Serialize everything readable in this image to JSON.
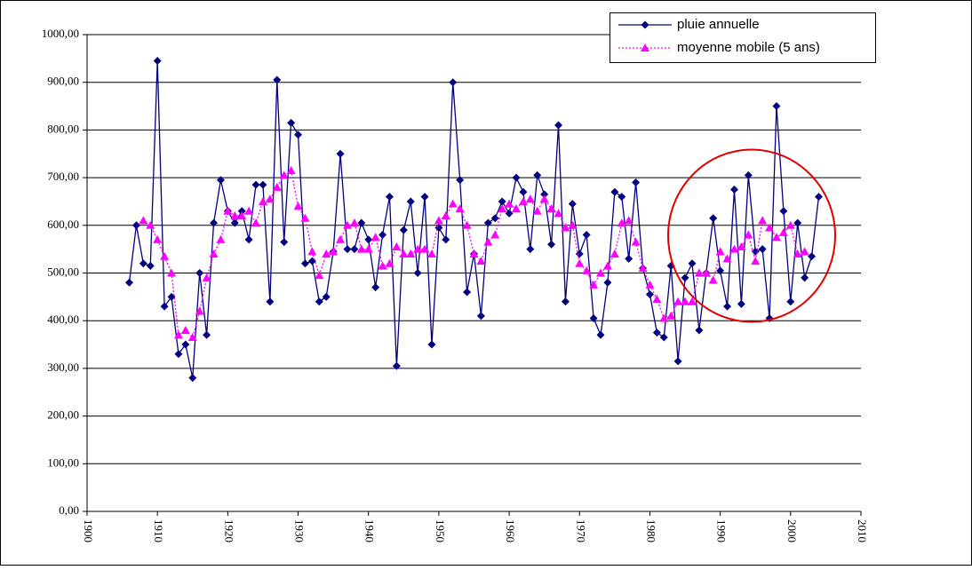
{
  "chart_data": {
    "type": "line",
    "x": [
      1906,
      1907,
      1908,
      1909,
      1910,
      1911,
      1912,
      1913,
      1914,
      1915,
      1916,
      1917,
      1918,
      1919,
      1920,
      1921,
      1922,
      1923,
      1924,
      1925,
      1926,
      1927,
      1928,
      1929,
      1930,
      1931,
      1932,
      1933,
      1934,
      1935,
      1936,
      1937,
      1938,
      1939,
      1940,
      1941,
      1942,
      1943,
      1944,
      1945,
      1946,
      1947,
      1948,
      1949,
      1950,
      1951,
      1952,
      1953,
      1954,
      1955,
      1956,
      1957,
      1958,
      1959,
      1960,
      1961,
      1962,
      1963,
      1964,
      1965,
      1966,
      1967,
      1968,
      1969,
      1970,
      1971,
      1972,
      1973,
      1974,
      1975,
      1976,
      1977,
      1978,
      1979,
      1980,
      1981,
      1982,
      1983,
      1984,
      1985,
      1986,
      1987,
      1988,
      1989,
      1990,
      1991,
      1992,
      1993,
      1994,
      1995,
      1996,
      1997,
      1998,
      1999,
      2000,
      2001,
      2002,
      2003,
      2004
    ],
    "series": [
      {
        "name": "pluie annuelle",
        "color": "#000080",
        "marker": "diamond",
        "dash": "solid",
        "values": [
          480,
          600,
          520,
          515,
          945,
          430,
          450,
          330,
          350,
          280,
          500,
          370,
          605,
          695,
          630,
          605,
          630,
          570,
          685,
          685,
          440,
          905,
          565,
          815,
          790,
          520,
          525,
          440,
          450,
          545,
          750,
          550,
          550,
          605,
          570,
          470,
          580,
          660,
          305,
          590,
          650,
          500,
          660,
          350,
          595,
          570,
          900,
          695,
          460,
          540,
          410,
          605,
          615,
          650,
          625,
          700,
          670,
          550,
          705,
          665,
          560,
          810,
          440,
          645,
          540,
          580,
          405,
          370,
          480,
          670,
          660,
          530,
          690,
          510,
          455,
          375,
          365,
          515,
          315,
          490,
          520,
          380,
          500,
          615,
          505,
          430,
          675,
          435,
          705,
          545,
          550,
          405,
          850,
          630,
          440,
          605,
          490,
          535,
          660
        ]
      },
      {
        "name": "moyenne mobile (5 ans)",
        "color": "#ff00ff",
        "marker": "triangle",
        "dash": "dotted",
        "values": [
          null,
          null,
          610,
          600,
          570,
          535,
          500,
          370,
          380,
          365,
          420,
          490,
          540,
          570,
          630,
          620,
          620,
          630,
          605,
          650,
          655,
          680,
          705,
          715,
          640,
          615,
          545,
          495,
          540,
          545,
          570,
          600,
          605,
          550,
          550,
          575,
          515,
          520,
          555,
          540,
          540,
          550,
          550,
          540,
          610,
          620,
          645,
          635,
          600,
          540,
          525,
          565,
          580,
          635,
          645,
          635,
          650,
          655,
          630,
          655,
          635,
          625,
          595,
          600,
          520,
          505,
          475,
          500,
          515,
          540,
          605,
          610,
          565,
          510,
          475,
          445,
          405,
          410,
          440,
          440,
          440,
          500,
          500,
          485,
          545,
          530,
          550,
          555,
          580,
          525,
          610,
          595,
          575,
          585,
          600,
          540,
          545,
          null,
          null
        ]
      }
    ],
    "xlim": [
      1900,
      2010
    ],
    "xticks": [
      1900,
      1910,
      1920,
      1930,
      1940,
      1950,
      1960,
      1970,
      1980,
      1990,
      2000,
      2010
    ],
    "ylim": [
      0,
      1000
    ],
    "yticks": [
      {
        "value": 0,
        "label": "0,00"
      },
      {
        "value": 100,
        "label": "100,00"
      },
      {
        "value": 200,
        "label": "200,00"
      },
      {
        "value": 300,
        "label": "300,00"
      },
      {
        "value": 400,
        "label": "400,00"
      },
      {
        "value": 500,
        "label": "500,00"
      },
      {
        "value": 600,
        "label": "600,00"
      },
      {
        "value": 700,
        "label": "700,00"
      },
      {
        "value": 800,
        "label": "800,00"
      },
      {
        "value": 900,
        "label": "900,00"
      },
      {
        "value": 1000,
        "label": "1000,00"
      }
    ],
    "grid": true,
    "legend": "top-right"
  }
}
